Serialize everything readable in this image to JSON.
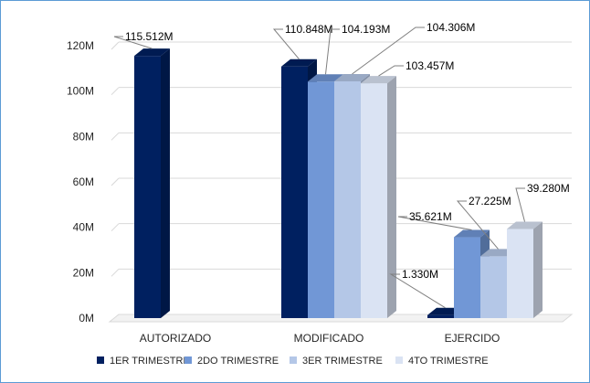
{
  "chart_data": {
    "type": "bar",
    "style": "3d-clustered-column",
    "categories": [
      "AUTORIZADO",
      "MODIFICADO",
      "EJERCIDO"
    ],
    "series": [
      {
        "name": "1ER TRIMESTRE",
        "color": "#002060",
        "values": [
          115.512,
          110.848,
          1.33
        ]
      },
      {
        "name": "2DO TRIMESTRE",
        "color": "#7197d6",
        "values": [
          null,
          104.193,
          35.621
        ]
      },
      {
        "name": "3ER TRIMESTRE",
        "color": "#b4c7e7",
        "values": [
          null,
          104.306,
          27.225
        ]
      },
      {
        "name": "4TO TRIMESTRE",
        "color": "#dae3f3",
        "values": [
          null,
          103.457,
          39.28
        ]
      }
    ],
    "data_labels": [
      {
        "category": 0,
        "series": 0,
        "text": "115.512M"
      },
      {
        "category": 1,
        "series": 0,
        "text": "110.848M"
      },
      {
        "category": 1,
        "series": 1,
        "text": "104.193M"
      },
      {
        "category": 1,
        "series": 2,
        "text": "104.306M"
      },
      {
        "category": 1,
        "series": 3,
        "text": "103.457M"
      },
      {
        "category": 2,
        "series": 0,
        "text": "1.330M"
      },
      {
        "category": 2,
        "series": 1,
        "text": "35.621M"
      },
      {
        "category": 2,
        "series": 2,
        "text": "27.225M"
      },
      {
        "category": 2,
        "series": 3,
        "text": "39.280M"
      }
    ],
    "y_ticks": [
      "0M",
      "20M",
      "40M",
      "60M",
      "80M",
      "100M",
      "120M"
    ],
    "ylim": [
      0,
      120
    ],
    "y_unit": "M",
    "grid": true,
    "legend_position": "bottom",
    "title": "",
    "xlabel": "",
    "ylabel": ""
  }
}
